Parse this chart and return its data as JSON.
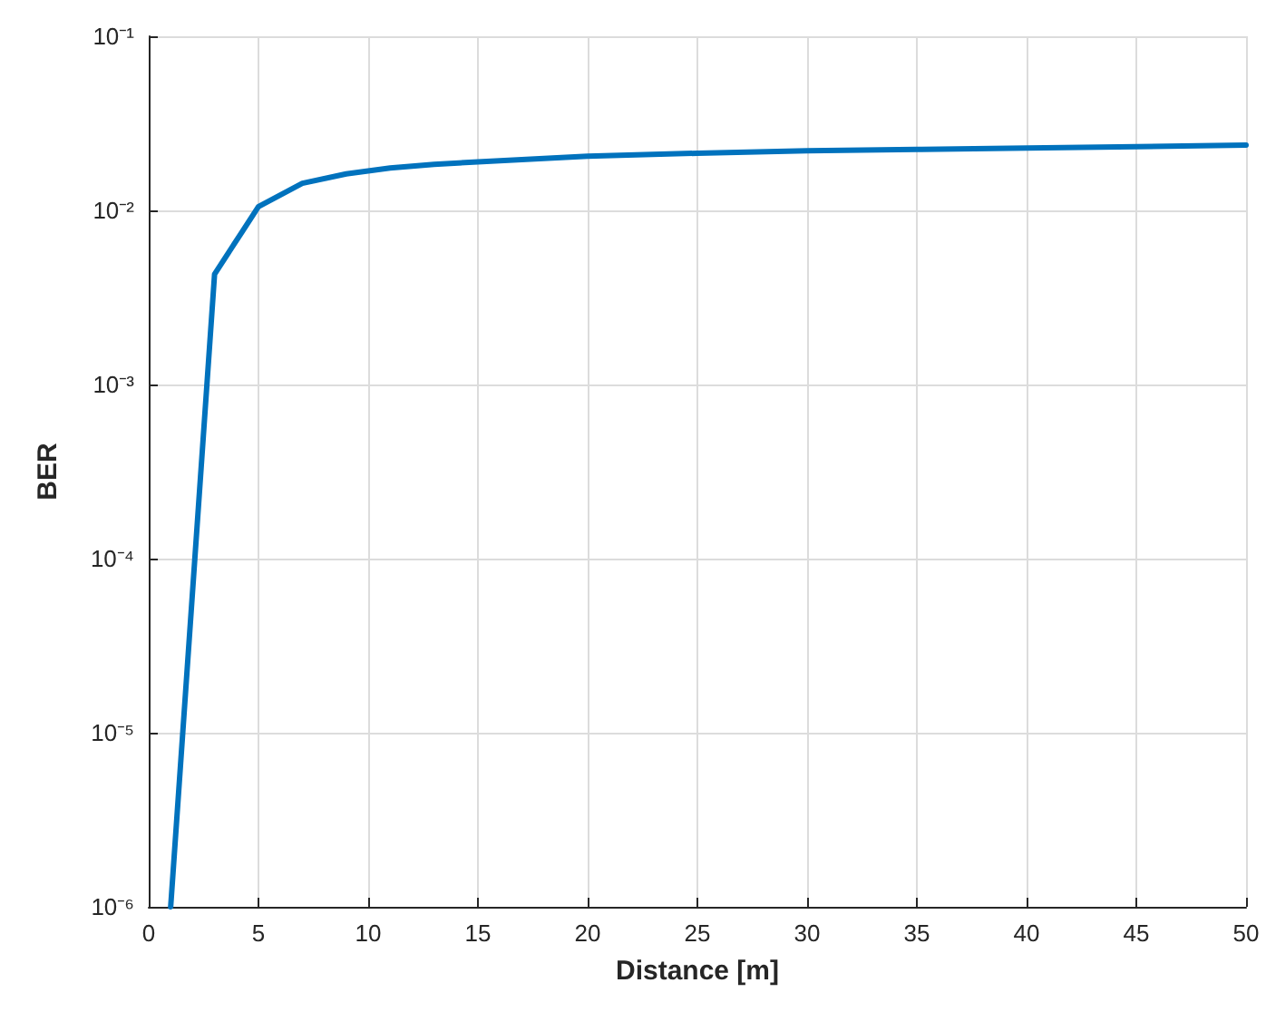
{
  "chart_data": {
    "type": "line",
    "xlabel": "Distance [m]",
    "ylabel": "BER",
    "x": [
      1,
      3,
      5,
      7,
      9,
      11,
      13,
      15,
      20,
      25,
      30,
      35,
      40,
      45,
      50
    ],
    "series": [
      {
        "color": "#0072bd",
        "values": [
          1e-06,
          0.0043,
          0.0105,
          0.0143,
          0.0162,
          0.0175,
          0.0184,
          0.019,
          0.0205,
          0.0213,
          0.022,
          0.0224,
          0.0228,
          0.0232,
          0.0237
        ]
      }
    ],
    "xlim": [
      0,
      50
    ],
    "xticks": [
      0,
      5,
      10,
      15,
      20,
      25,
      30,
      35,
      40,
      45,
      50
    ],
    "ylim": [
      1e-06,
      0.1
    ],
    "yticks": [
      {
        "value": 1e-06,
        "label": "10⁻⁶"
      },
      {
        "value": 1e-05,
        "label": "10⁻⁵"
      },
      {
        "value": 0.0001,
        "label": "10⁻⁴"
      },
      {
        "value": 0.001,
        "label": "10⁻³"
      },
      {
        "value": 0.01,
        "label": "10⁻²"
      },
      {
        "value": 0.1,
        "label": "10⁻¹"
      }
    ],
    "log": "y",
    "grid": true,
    "marker": "none",
    "line_style": "solid"
  }
}
